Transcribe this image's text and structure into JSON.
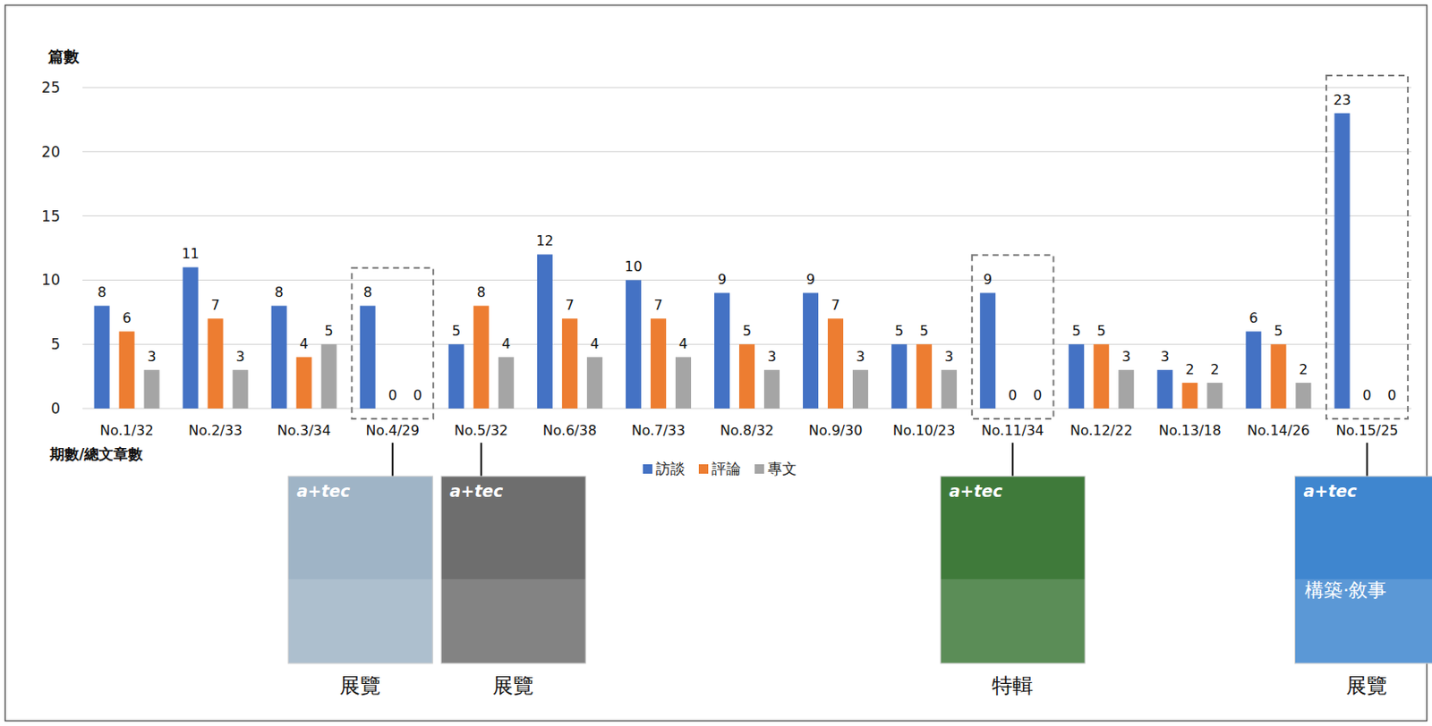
{
  "chart_data": {
    "type": "bar",
    "y_label": "篇數",
    "x_label": "期數/總文章數",
    "categories": [
      "No.1/32",
      "No.2/33",
      "No.3/34",
      "No.4/29",
      "No.5/32",
      "No.6/38",
      "No.7/33",
      "No.8/32",
      "No.9/30",
      "No.10/23",
      "No.11/34",
      "No.12/22",
      "No.13/18",
      "No.14/26",
      "No.15/25"
    ],
    "series": [
      {
        "name": "訪談",
        "color": "#4472c4",
        "values": [
          8,
          11,
          8,
          8,
          5,
          12,
          10,
          9,
          9,
          5,
          9,
          5,
          3,
          6,
          23
        ]
      },
      {
        "name": "評論",
        "color": "#ed7d31",
        "values": [
          6,
          7,
          4,
          0,
          8,
          7,
          7,
          5,
          7,
          5,
          0,
          5,
          2,
          5,
          0
        ]
      },
      {
        "name": "專文",
        "color": "#a5a5a5",
        "values": [
          3,
          3,
          5,
          0,
          4,
          4,
          4,
          3,
          3,
          3,
          0,
          3,
          2,
          2,
          0
        ]
      }
    ],
    "ylim": [
      0,
      25
    ],
    "yticks": [
      0,
      5,
      10,
      15,
      20,
      25
    ],
    "grid": true,
    "legend": "bottom",
    "data_labels": true,
    "annotations": [
      {
        "category": "No.4/29",
        "label": "展覽",
        "cover_title": "a+tec",
        "color": "#9fb4c6",
        "boxed": true
      },
      {
        "category": "No.5/32",
        "label": "展覽",
        "cover_title": "a+tec",
        "color": "#6e6e6e",
        "boxed": false
      },
      {
        "category": "No.11/34",
        "label": "特輯",
        "cover_title": "a+tec",
        "color": "#3f7a3a",
        "boxed": true
      },
      {
        "category": "No.15/25",
        "label": "展覽",
        "cover_title": "a+tec",
        "cover_text": "構築·敘事",
        "color": "#3f86cf",
        "boxed": true
      }
    ]
  }
}
